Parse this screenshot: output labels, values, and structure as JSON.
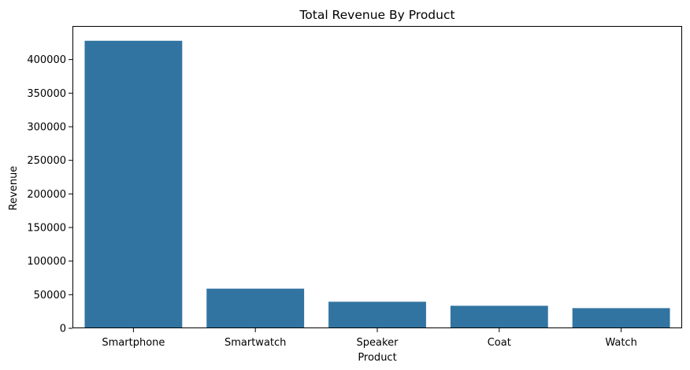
{
  "chart_data": {
    "type": "bar",
    "title": "Total Revenue By Product",
    "xlabel": "Product",
    "ylabel": "Revenue",
    "categories": [
      "Smartphone",
      "Smartwatch",
      "Speaker",
      "Coat",
      "Watch"
    ],
    "values": [
      428000,
      59000,
      39500,
      33500,
      30000
    ],
    "yticks": [
      0,
      50000,
      100000,
      150000,
      200000,
      250000,
      300000,
      350000,
      400000
    ],
    "ylim": [
      0,
      450000
    ],
    "grid": false,
    "bar_color": "#3274a1"
  }
}
